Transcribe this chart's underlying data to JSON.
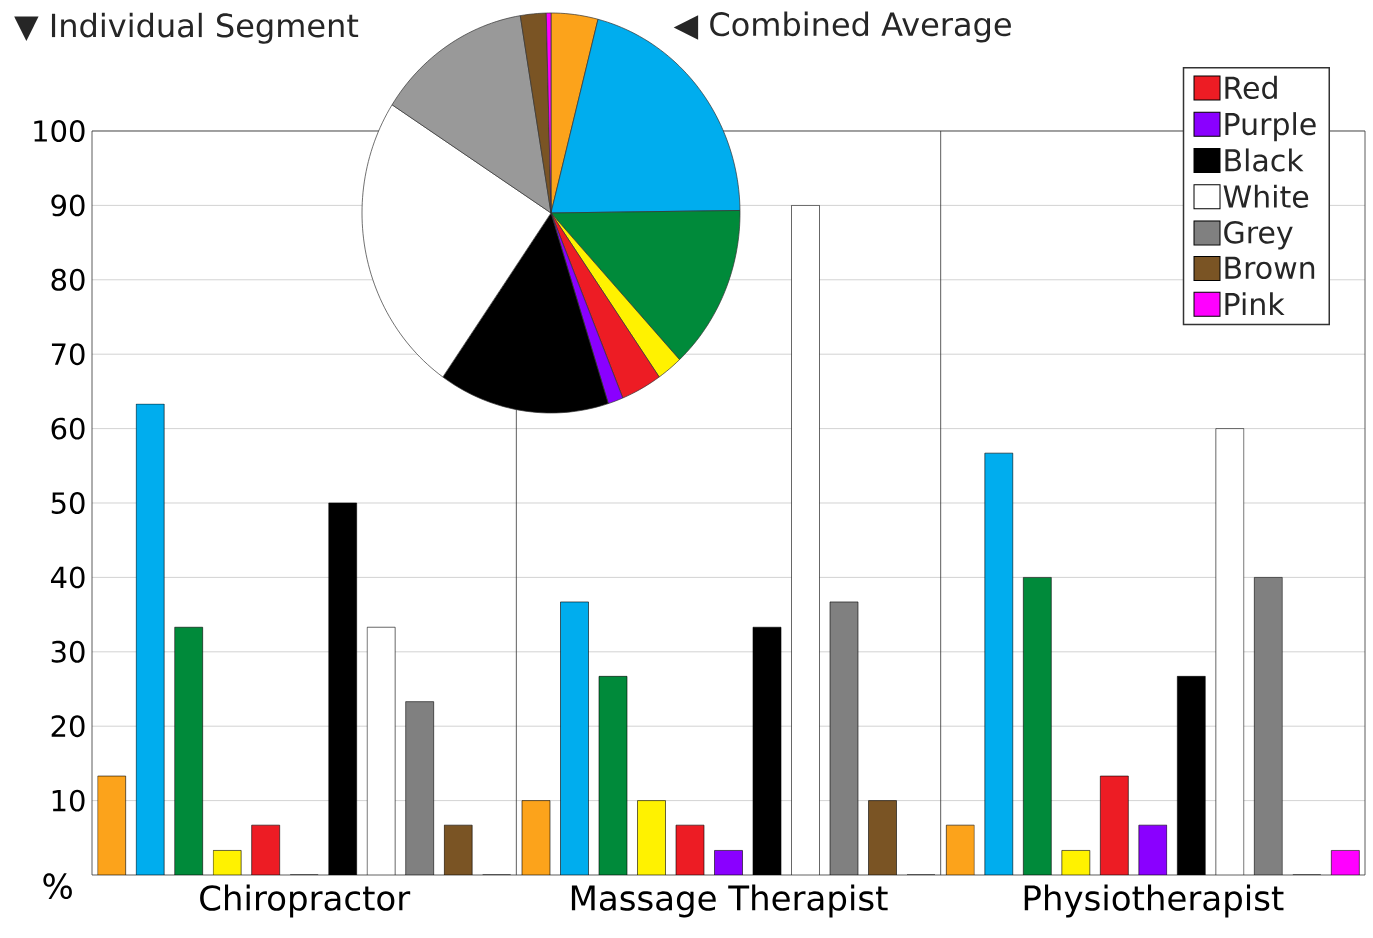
{
  "chart_data": [
    {
      "type": "bar",
      "title": "▼ Individual Segment",
      "ylabel": "%",
      "categories": [
        "Chiropractor",
        "Massage Therapist",
        "Physiotherapist"
      ],
      "series": [
        {
          "color": "#fca31b",
          "values": [
            13.3,
            10,
            6.7
          ]
        },
        {
          "color": "#00adee",
          "values": [
            63.3,
            36.7,
            56.7
          ]
        },
        {
          "color": "#008a3a",
          "values": [
            33.3,
            26.7,
            40
          ]
        },
        {
          "color": "#fff200",
          "values": [
            3.3,
            10,
            3.3
          ]
        },
        {
          "name": "Red",
          "color": "#ed1c24",
          "values": [
            6.7,
            6.7,
            13.3
          ]
        },
        {
          "name": "Purple",
          "color": "#8a00ff",
          "values": [
            0,
            3.3,
            6.7
          ]
        },
        {
          "name": "Black",
          "color": "#000000",
          "values": [
            50,
            33.3,
            26.7
          ]
        },
        {
          "name": "White",
          "color": "#ffffff",
          "values": [
            33.3,
            90,
            60
          ]
        },
        {
          "name": "Grey",
          "color": "#808080",
          "values": [
            23.3,
            36.7,
            40
          ]
        },
        {
          "name": "Brown",
          "color": "#7a5424",
          "values": [
            6.7,
            10,
            0
          ]
        },
        {
          "name": "Pink",
          "color": "#ff00ff",
          "values": [
            0,
            0,
            3.3
          ]
        }
      ],
      "ylim": [
        0,
        100
      ],
      "yticks": [
        10,
        20,
        30,
        40,
        50,
        60,
        70,
        80,
        90,
        100
      ],
      "grid": "y",
      "legend": "top right"
    },
    {
      "type": "pie",
      "title": "◀ Combined Average",
      "categories": [
        null,
        null,
        null,
        null,
        null,
        null,
        null,
        null,
        null,
        null,
        null
      ],
      "values": [
        4.0,
        20.8,
        13.3,
        2.2,
        3.5,
        1.3,
        14.6,
        24.4,
        13.3,
        2.2,
        0.4
      ],
      "colors": [
        "#fca31b",
        "#00adee",
        "#008a3a",
        "#fff200",
        "#ed1c24",
        "#8a00ff",
        "#000000",
        "#ffffff",
        "#999999",
        "#7a5424",
        "#ff00ff"
      ]
    }
  ]
}
